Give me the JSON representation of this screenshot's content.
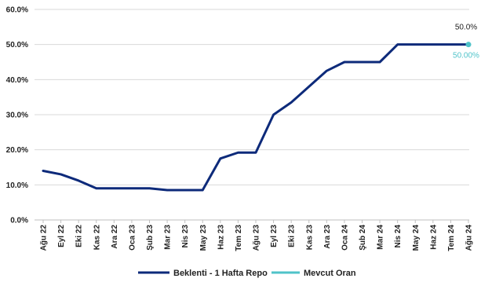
{
  "chart_data": {
    "type": "line",
    "categories": [
      "Ağu 22",
      "Eyl 22",
      "Eki 22",
      "Kas 22",
      "Ara 22",
      "Oca 23",
      "Şub 23",
      "Mar 23",
      "Nis 23",
      "May 23",
      "Haz 23",
      "Tem 23",
      "Ağu 23",
      "Eyl 23",
      "Eki 23",
      "Kas 23",
      "Ara 23",
      "Oca 24",
      "Şub 24",
      "Mar 24",
      "Nis 24",
      "May 24",
      "Haz 24",
      "Tem 24",
      "Ağu 24"
    ],
    "y_ticks": [
      "0.0%",
      "10.0%",
      "20.0%",
      "30.0%",
      "40.0%",
      "50.0%",
      "60.0%"
    ],
    "ylim": [
      0,
      60
    ],
    "grid": true,
    "legend_position": "bottom",
    "series": [
      {
        "name": "Beklenti - 1 Hafta Repo",
        "color": "#0d2a7a",
        "values": [
          14,
          13,
          11.2,
          9,
          9,
          9,
          9,
          8.5,
          8.5,
          8.5,
          17.5,
          19.2,
          19.2,
          30,
          33.5,
          38,
          42.5,
          45,
          45,
          45,
          50,
          50,
          50,
          50,
          50
        ]
      },
      {
        "name": "Mevcut Oran",
        "color": "#4fc3c9",
        "values": [
          null,
          null,
          null,
          null,
          null,
          null,
          null,
          null,
          null,
          null,
          null,
          null,
          null,
          null,
          null,
          null,
          null,
          null,
          null,
          null,
          null,
          null,
          null,
          null,
          50
        ]
      }
    ],
    "annotations": [
      {
        "text": "50.0%",
        "series": 0,
        "index": 24,
        "color": "#222222"
      },
      {
        "text": "50.00%",
        "series": 1,
        "index": 24,
        "color": "#4fc3c9"
      }
    ]
  }
}
